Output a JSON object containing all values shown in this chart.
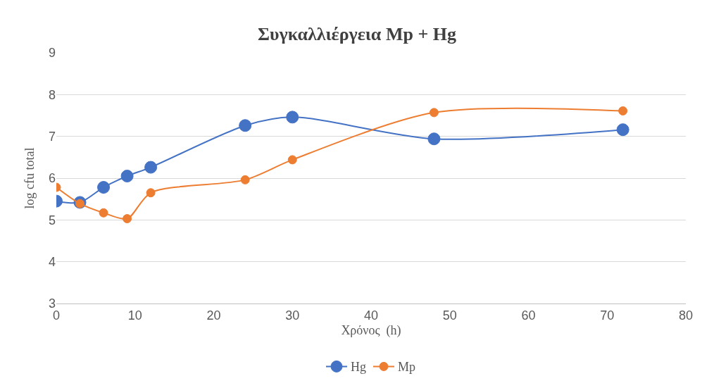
{
  "chart_data": {
    "type": "line",
    "title": "Συγκαλλιέργεια Mp + Hg",
    "xlabel": "Χρόνος  (h)",
    "ylabel": "log cfu total",
    "x": [
      0,
      3,
      6,
      9,
      12,
      24,
      30,
      48,
      72
    ],
    "series": [
      {
        "name": "Hg",
        "color": "#4472c4",
        "values": [
          5.45,
          5.42,
          5.78,
          6.05,
          6.26,
          7.26,
          7.46,
          6.94,
          7.16
        ]
      },
      {
        "name": "Mp",
        "color": "#ed7d31",
        "values": [
          5.78,
          5.39,
          5.17,
          5.03,
          5.65,
          5.96,
          6.44,
          7.57,
          7.61
        ]
      }
    ],
    "xlim": [
      0,
      80
    ],
    "xticks": [
      0,
      10,
      20,
      30,
      40,
      50,
      60,
      70,
      80
    ],
    "ylim": [
      3,
      9
    ],
    "yticks": [
      3,
      4,
      5,
      6,
      7,
      8,
      9
    ],
    "grid": "y",
    "legend": "bottom",
    "marker": "circle",
    "line_style": "solid"
  }
}
